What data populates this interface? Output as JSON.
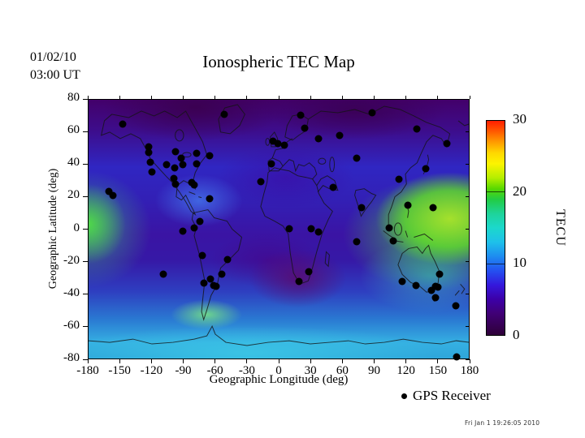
{
  "header": {
    "date_line1": "01/02/10",
    "date_line2": "03:00 UT",
    "title": "Ionospheric TEC Map"
  },
  "legend": {
    "marker": "filled-black-circle",
    "label": "GPS Receiver"
  },
  "footer": {
    "timestamp": "Fri Jan  1 19:26:05 2010"
  },
  "colors": {
    "background": "#ffffff",
    "frame": "#000000",
    "gps_marker": "#000000",
    "tec_low": "#2e0038",
    "tec_mid": "#1ec0ea",
    "tec_high": "#ff1e00"
  },
  "chart_data": {
    "type": "heatmap",
    "title": "Ionospheric TEC Map",
    "xlabel": "Geographic Longitude (deg)",
    "ylabel": "Geographic Latitude (deg)",
    "xlim": [
      -180,
      180
    ],
    "ylim": [
      -80,
      80
    ],
    "x_ticks": [
      -180,
      -150,
      -120,
      -90,
      -60,
      -30,
      0,
      30,
      60,
      90,
      120,
      150,
      180
    ],
    "y_ticks": [
      80,
      60,
      40,
      20,
      0,
      -20,
      -40,
      -60,
      -80
    ],
    "grid": false,
    "colorbar": {
      "label": "TECU",
      "range": [
        0,
        30
      ],
      "ticks": [
        0,
        10,
        20,
        30
      ],
      "stops": [
        {
          "v": 30,
          "c": "#ff1e00"
        },
        {
          "v": 28.5,
          "c": "#ff5a00"
        },
        {
          "v": 27,
          "c": "#ff9c00"
        },
        {
          "v": 25.5,
          "c": "#ffd800"
        },
        {
          "v": 24,
          "c": "#fcf400"
        },
        {
          "v": 22,
          "c": "#b4ee00"
        },
        {
          "v": 20.5,
          "c": "#58d800"
        },
        {
          "v": 19,
          "c": "#22cc44"
        },
        {
          "v": 17,
          "c": "#1ed49a"
        },
        {
          "v": 15,
          "c": "#1cd8cc"
        },
        {
          "v": 13,
          "c": "#1ec0ea"
        },
        {
          "v": 11,
          "c": "#1e8cf0"
        },
        {
          "v": 9,
          "c": "#2450f0"
        },
        {
          "v": 7,
          "c": "#3418dc"
        },
        {
          "v": 5,
          "c": "#3c00a8"
        },
        {
          "v": 3,
          "c": "#400075"
        },
        {
          "v": 0,
          "c": "#2e0038"
        }
      ]
    },
    "tec_grid_lon": [
      -180,
      -150,
      -120,
      -90,
      -60,
      -30,
      0,
      30,
      60,
      90,
      120,
      150,
      180
    ],
    "tec_grid_lat": [
      80,
      60,
      40,
      20,
      0,
      -20,
      -40,
      -60,
      -80
    ],
    "tec_values_approx_tecu": [
      [
        4,
        3,
        3,
        3,
        3,
        4,
        4,
        4,
        4,
        5,
        5,
        5,
        4
      ],
      [
        6,
        5,
        3,
        3,
        3,
        4,
        5,
        4,
        4,
        5,
        6,
        7,
        6
      ],
      [
        8,
        7,
        7,
        6,
        6,
        6,
        6,
        6,
        7,
        8,
        12,
        10,
        9
      ],
      [
        14,
        12,
        9,
        10,
        8,
        6,
        6,
        6,
        8,
        12,
        18,
        16,
        15
      ],
      [
        17,
        20,
        13,
        9,
        7,
        6,
        6,
        7,
        9,
        14,
        20,
        21,
        19
      ],
      [
        13,
        12,
        10,
        8,
        6,
        5,
        4,
        5,
        8,
        12,
        17,
        16,
        14
      ],
      [
        11,
        11,
        10,
        9,
        8,
        6,
        5,
        6,
        8,
        10,
        13,
        13,
        12
      ],
      [
        12,
        12,
        12,
        13,
        12,
        10,
        9,
        9,
        10,
        10,
        11,
        11,
        11
      ],
      [
        10,
        10,
        10,
        10,
        10,
        9,
        9,
        9,
        9,
        10,
        10,
        10,
        10
      ]
    ],
    "overlay_scatter": {
      "name": "GPS Receiver",
      "marker": "filled-circle",
      "color": "#000000",
      "points_lonlat": [
        [
          -147.5,
          65
        ],
        [
          -52,
          71
        ],
        [
          -123.3,
          51
        ],
        [
          -123,
          47.5
        ],
        [
          -121.5,
          41.5
        ],
        [
          -120,
          35.5
        ],
        [
          -106.5,
          40
        ],
        [
          -98,
          48
        ],
        [
          -98.5,
          38
        ],
        [
          -93,
          44
        ],
        [
          -91,
          40
        ],
        [
          -78,
          47
        ],
        [
          -78,
          40.5
        ],
        [
          -66,
          45.5
        ],
        [
          -99.5,
          31.5
        ],
        [
          -98,
          28
        ],
        [
          -82.5,
          29
        ],
        [
          -80.3,
          27.5
        ],
        [
          -160.5,
          23.5
        ],
        [
          -157,
          21
        ],
        [
          -65.5,
          19
        ],
        [
          -75,
          5
        ],
        [
          -80.5,
          1
        ],
        [
          -91.5,
          -0.5
        ],
        [
          -72.5,
          -15.5
        ],
        [
          -49,
          -18
        ],
        [
          -109.5,
          -27.2
        ],
        [
          -54.5,
          -27
        ],
        [
          -71,
          -32.5
        ],
        [
          -65,
          -30
        ],
        [
          -62,
          -34
        ],
        [
          -59.5,
          -34.5
        ],
        [
          -6,
          54.5
        ],
        [
          -1.5,
          53.3
        ],
        [
          4.5,
          52
        ],
        [
          -7.5,
          40.5
        ],
        [
          -17.5,
          29.5
        ],
        [
          20,
          70.5
        ],
        [
          24,
          62.5
        ],
        [
          37,
          56
        ],
        [
          56.5,
          58
        ],
        [
          9.5,
          0.5
        ],
        [
          29.5,
          0.5
        ],
        [
          36.8,
          -1.3
        ],
        [
          27.7,
          -25.9
        ],
        [
          18.5,
          -31.5
        ],
        [
          87,
          72
        ],
        [
          129.7,
          62
        ],
        [
          158,
          53
        ],
        [
          73,
          44
        ],
        [
          50.6,
          26.2
        ],
        [
          112.5,
          31
        ],
        [
          138,
          37.5
        ],
        [
          77.5,
          13.5
        ],
        [
          121,
          15
        ],
        [
          144.7,
          13.5
        ],
        [
          103.7,
          1.3
        ],
        [
          107.6,
          -6.9
        ],
        [
          72.4,
          -7.3
        ],
        [
          115.8,
          -31.9
        ],
        [
          128.7,
          -34
        ],
        [
          143,
          -37
        ],
        [
          147,
          -34.6
        ],
        [
          149,
          -35.3
        ],
        [
          150.9,
          -27.2
        ],
        [
          147,
          -41.5
        ],
        [
          166.5,
          -46.8
        ],
        [
          166.7,
          -77.8
        ]
      ]
    }
  }
}
